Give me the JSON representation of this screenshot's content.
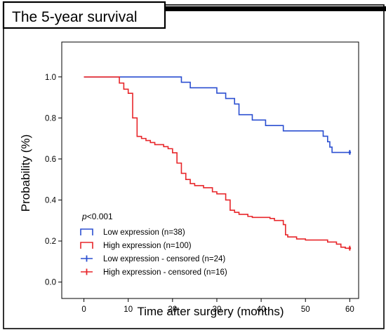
{
  "panel_title": "The 5-year survival",
  "chart_data": {
    "type": "line",
    "subtype": "kaplan-meier",
    "xlabel": "Time after surgery (months)",
    "ylabel": "Probability (%)",
    "xlim": [
      -5,
      62
    ],
    "ylim": [
      -0.08,
      1.17
    ],
    "x_ticks": [
      0,
      10,
      20,
      30,
      40,
      50,
      60
    ],
    "y_ticks": [
      0.0,
      0.2,
      0.4,
      0.6,
      0.8,
      1.0
    ],
    "y_tick_labels": [
      "0.0",
      "0.2",
      "0.4",
      "0.6",
      "0.8",
      "1.0"
    ],
    "annotation": {
      "p_italic": "p",
      "p_rest": "<0.001"
    },
    "grid": false,
    "legend_position": "bottom-left",
    "legend": [
      {
        "label": "Low expression (n=38)",
        "color": "#2b4fd1",
        "kind": "step"
      },
      {
        "label": "High expression (n=100)",
        "color": "#e8262a",
        "kind": "step"
      },
      {
        "label": "Low expression - censored (n=24)",
        "color": "#2b4fd1",
        "kind": "censor"
      },
      {
        "label": "High expression - censored (n=16)",
        "color": "#e8262a",
        "kind": "censor"
      }
    ],
    "series": [
      {
        "name": "Low expression (n=38)",
        "color": "#2b4fd1",
        "steps": [
          [
            0,
            1.0
          ],
          [
            22,
            0.974
          ],
          [
            24,
            0.947
          ],
          [
            30,
            0.921
          ],
          [
            32,
            0.895
          ],
          [
            34,
            0.868
          ],
          [
            35,
            0.816
          ],
          [
            38,
            0.79
          ],
          [
            41,
            0.763
          ],
          [
            45,
            0.737
          ],
          [
            54,
            0.711
          ],
          [
            55,
            0.684
          ],
          [
            55.5,
            0.658
          ],
          [
            56,
            0.632
          ],
          [
            60,
            0.632
          ]
        ],
        "censored": [
          [
            60,
            0.632
          ]
        ]
      },
      {
        "name": "High expression (n=100)",
        "color": "#e8262a",
        "steps": [
          [
            0,
            1.0
          ],
          [
            8,
            0.97
          ],
          [
            9,
            0.94
          ],
          [
            10,
            0.92
          ],
          [
            11,
            0.8
          ],
          [
            12,
            0.71
          ],
          [
            13,
            0.7
          ],
          [
            14,
            0.69
          ],
          [
            15,
            0.68
          ],
          [
            16,
            0.67
          ],
          [
            18,
            0.66
          ],
          [
            19,
            0.65
          ],
          [
            20,
            0.63
          ],
          [
            21,
            0.58
          ],
          [
            22,
            0.53
          ],
          [
            23,
            0.5
          ],
          [
            24,
            0.48
          ],
          [
            25,
            0.47
          ],
          [
            27,
            0.46
          ],
          [
            29,
            0.44
          ],
          [
            30,
            0.43
          ],
          [
            32,
            0.4
          ],
          [
            33,
            0.35
          ],
          [
            34,
            0.34
          ],
          [
            35,
            0.33
          ],
          [
            37,
            0.32
          ],
          [
            38,
            0.315
          ],
          [
            42,
            0.31
          ],
          [
            43,
            0.3
          ],
          [
            45,
            0.28
          ],
          [
            45.5,
            0.23
          ],
          [
            46,
            0.22
          ],
          [
            48,
            0.21
          ],
          [
            50,
            0.205
          ],
          [
            55,
            0.195
          ],
          [
            57,
            0.185
          ],
          [
            58,
            0.17
          ],
          [
            59,
            0.165
          ],
          [
            60,
            0.165
          ]
        ],
        "censored": [
          [
            60,
            0.165
          ]
        ]
      }
    ]
  }
}
